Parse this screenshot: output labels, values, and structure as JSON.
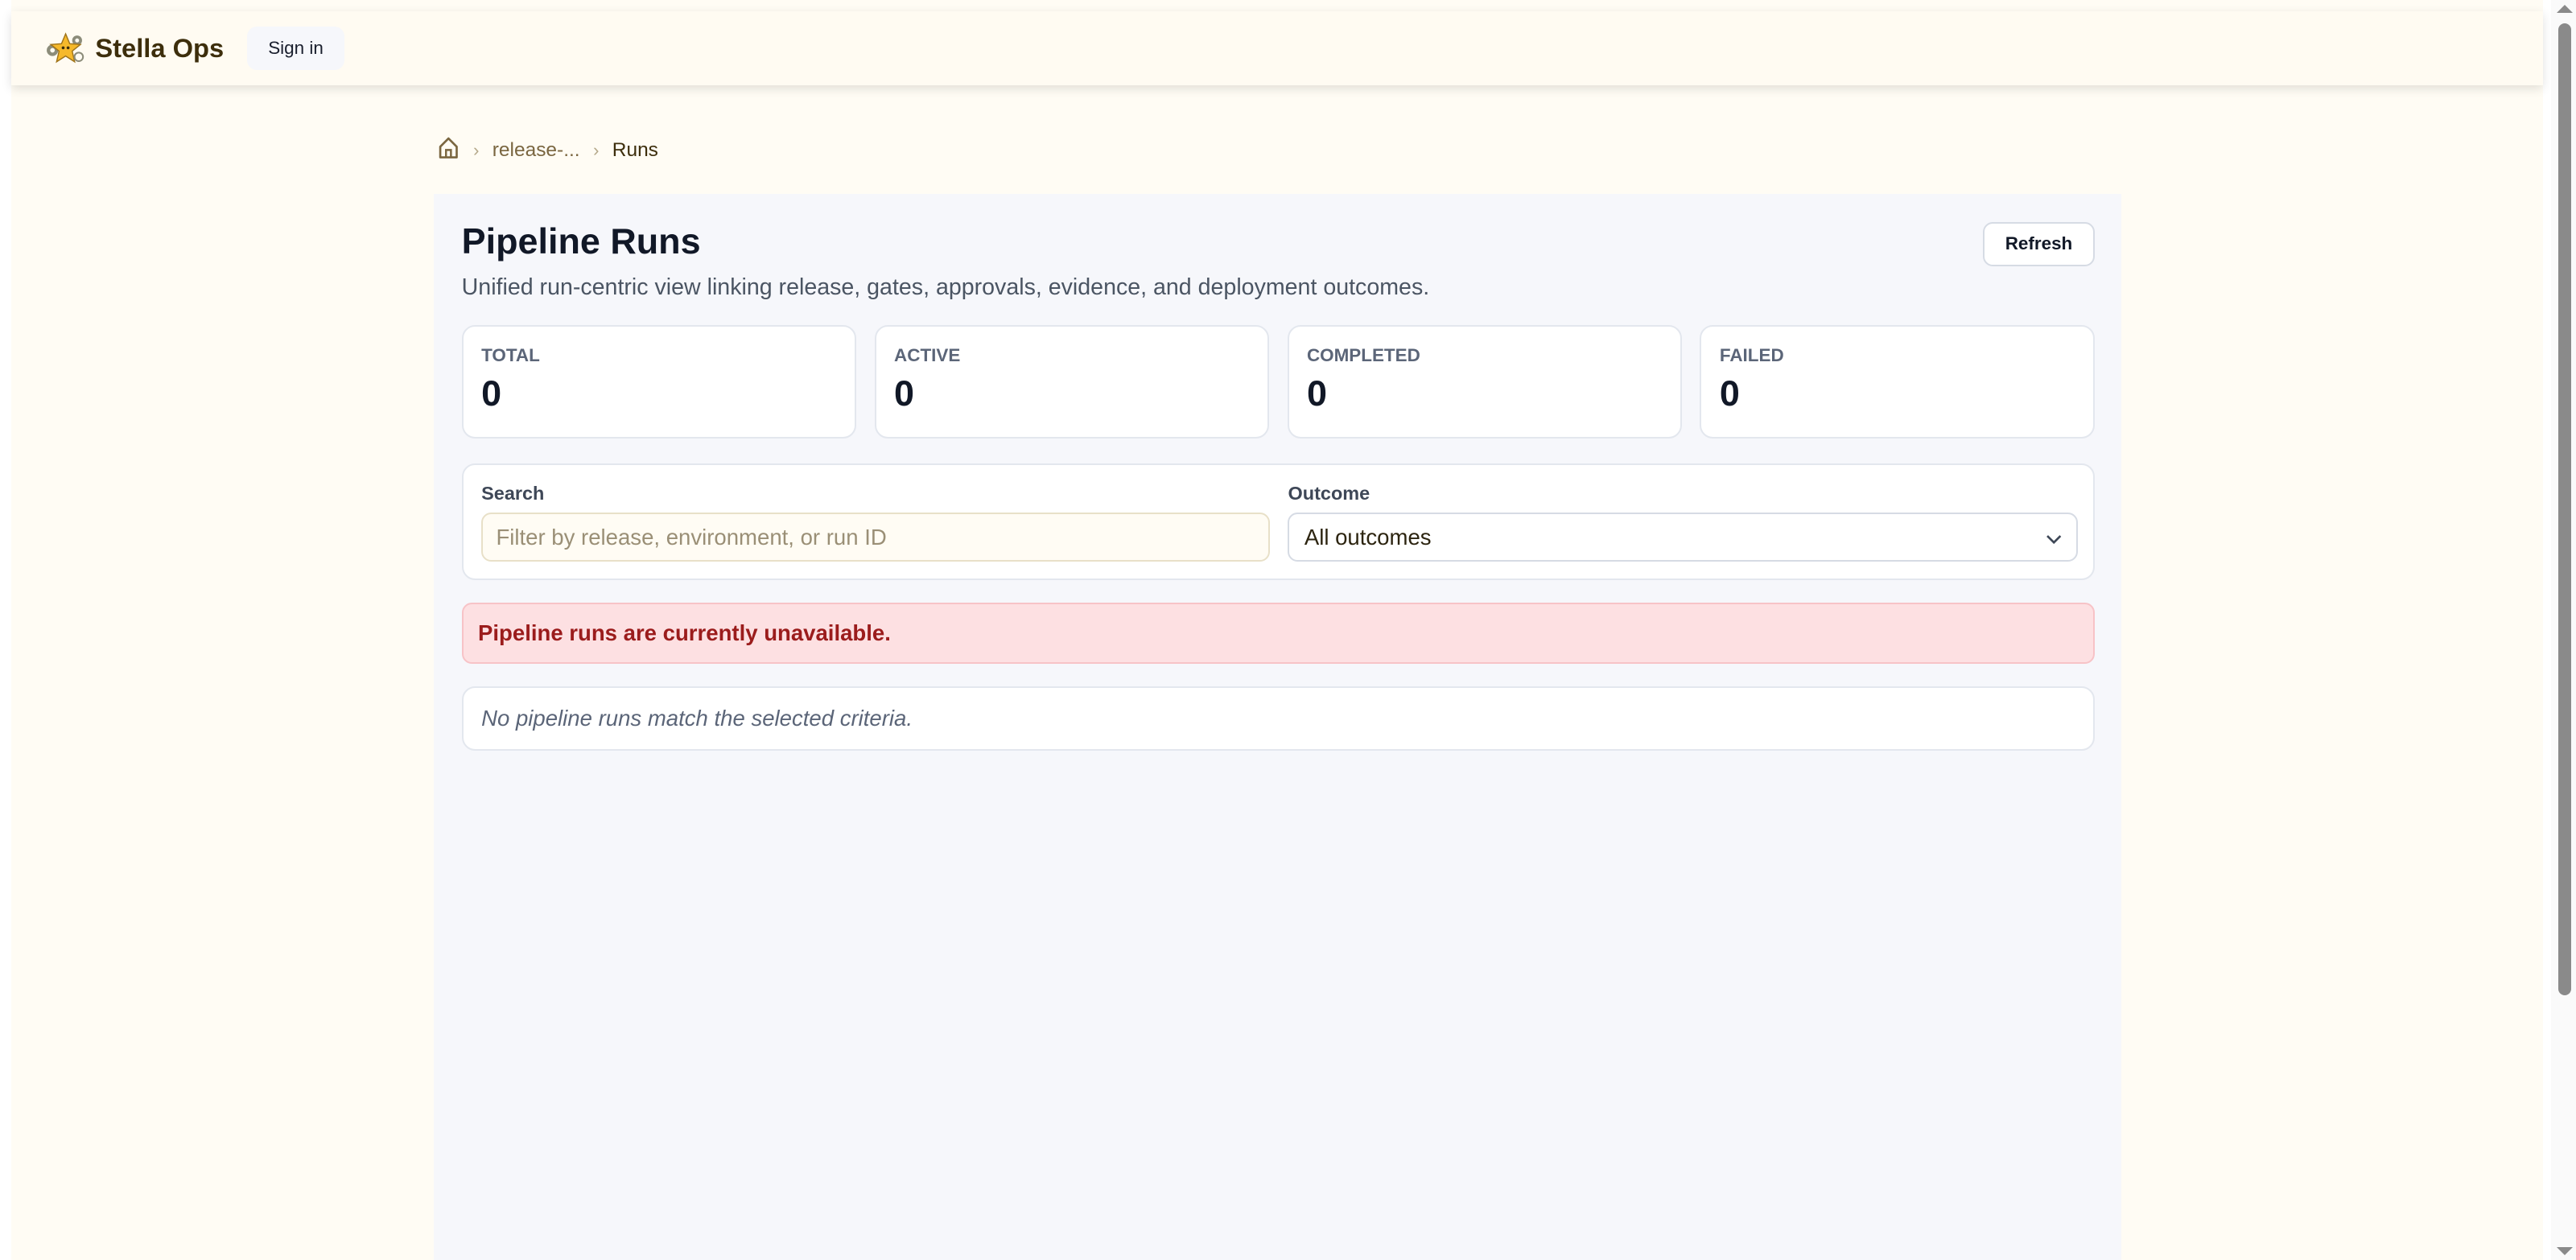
{
  "header": {
    "brand": "Stella Ops",
    "logo_icon": "star-mascot-icon",
    "sign_in": "Sign in"
  },
  "breadcrumb": {
    "home_icon": "home-icon",
    "items": [
      "release-...",
      "Runs"
    ]
  },
  "main": {
    "title": "Pipeline Runs",
    "subtitle": "Unified run-centric view linking release, gates, approvals, evidence, and deployment outcomes.",
    "refresh": "Refresh",
    "stats": [
      {
        "label": "TOTAL",
        "value": "0"
      },
      {
        "label": "ACTIVE",
        "value": "0"
      },
      {
        "label": "COMPLETED",
        "value": "0"
      },
      {
        "label": "FAILED",
        "value": "0"
      }
    ],
    "filters": {
      "search_label": "Search",
      "search_placeholder": "Filter by release, environment, or run ID",
      "search_value": "",
      "outcome_label": "Outcome",
      "outcome_value": "All outcomes"
    },
    "error": "Pipeline runs are currently unavailable.",
    "empty": "No pipeline runs match the selected criteria."
  },
  "colors": {
    "page_bg": "#fffcf4",
    "panel_bg": "#f6f7fb",
    "error_bg": "#fde0e2",
    "error_text": "#9b1c1c",
    "brand_text": "#3d2e0c"
  }
}
